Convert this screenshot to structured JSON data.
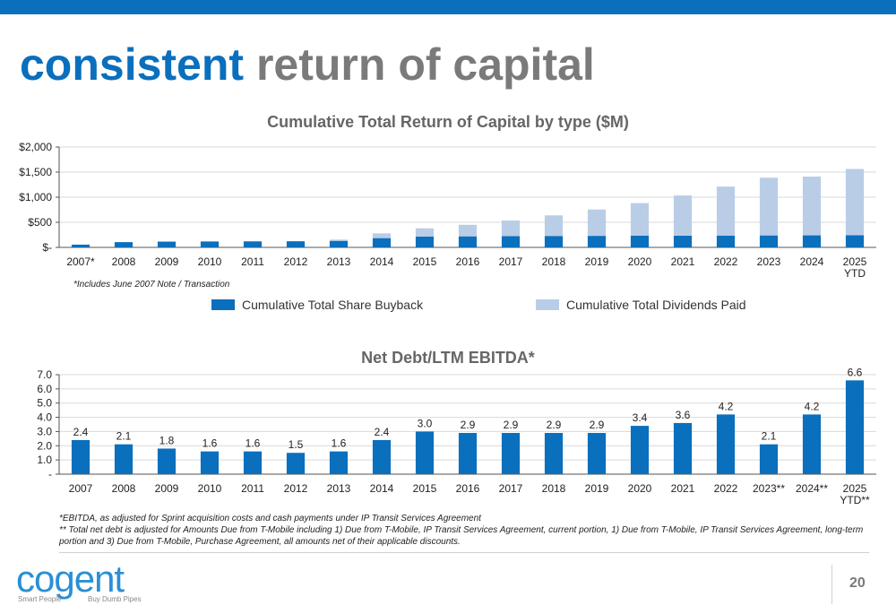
{
  "page": {
    "title_part1": "consistent",
    "title_part2": "return of capital",
    "page_number": "20",
    "colors": {
      "accent": "#0a6fbd",
      "dividends": "#b9cde6",
      "title_gray": "#7a7a7a"
    }
  },
  "logo": {
    "word": "cogent",
    "tagline_left": "Smart People",
    "tagline_right": "Buy Dumb Pipes"
  },
  "footnotes": {
    "chart1_note": "*Includes June 2007 Note / Transaction",
    "ebitda_note": "*EBITDA, as adjusted for Sprint acquisition costs and cash payments under IP Transit Services Agreement",
    "net_debt_note": "**   Total net debt is adjusted for Amounts Due from T-Mobile including 1) Due from T-Mobile, IP Transit Services Agreement, current portion, 1) Due from T-Mobile, IP Transit Services Agreement, long-term portion and 3) Due from T-Mobile, Purchase Agreement, all amounts net of their applicable discounts."
  },
  "chart_data": [
    {
      "type": "bar",
      "stacked": true,
      "title": "Cumulative Total Return of Capital by type ($M)",
      "categories": [
        "2007*",
        "2008",
        "2009",
        "2010",
        "2011",
        "2012",
        "2013",
        "2014",
        "2015",
        "2016",
        "2017",
        "2018",
        "2019",
        "2020",
        "2021",
        "2022",
        "2023",
        "2024",
        "2025\nYTD"
      ],
      "series": [
        {
          "name": "Cumulative Total Share Buyback",
          "color": "#0a6fbd",
          "values": [
            55,
            105,
            115,
            118,
            120,
            122,
            130,
            185,
            215,
            220,
            225,
            228,
            230,
            232,
            234,
            236,
            238,
            240,
            242
          ]
        },
        {
          "name": "Cumulative Total Dividends Paid",
          "color": "#b9cde6",
          "values": [
            0,
            0,
            0,
            0,
            0,
            0,
            25,
            95,
            165,
            230,
            310,
            410,
            525,
            650,
            800,
            975,
            1150,
            1170,
            1320
          ]
        }
      ],
      "yticks": [
        "$-",
        "$500",
        "$1,000",
        "$1,500",
        "$2,000"
      ],
      "ylim": [
        0,
        2000
      ],
      "grid": true,
      "legend": "bottom"
    },
    {
      "type": "bar",
      "title": "Net Debt/LTM EBITDA*",
      "categories": [
        "2007",
        "2008",
        "2009",
        "2010",
        "2011",
        "2012",
        "2013",
        "2014",
        "2015",
        "2016",
        "2017",
        "2018",
        "2019",
        "2020",
        "2021",
        "2022",
        "2023**",
        "2024**",
        "2025\nYTD**"
      ],
      "series": [
        {
          "color": "#0a6fbd",
          "values": [
            2.4,
            2.1,
            1.8,
            1.6,
            1.6,
            1.5,
            1.6,
            2.4,
            3.0,
            2.9,
            2.9,
            2.9,
            2.9,
            3.4,
            3.6,
            4.2,
            2.1,
            4.2,
            6.6
          ],
          "labels": [
            "2.4",
            "2.1",
            "1.8",
            "1.6",
            "1.6",
            "1.5",
            "1.6",
            "2.4",
            "3.0",
            "2.9",
            "2.9",
            "2.9",
            "2.9",
            "3.4",
            "3.6",
            "4.2",
            "2.1",
            "4.2",
            "6.6"
          ]
        }
      ],
      "yticks": [
        "-",
        "1.0",
        "2.0",
        "3.0",
        "4.0",
        "5.0",
        "6.0",
        "7.0"
      ],
      "ylim": [
        0,
        7
      ],
      "grid": true
    }
  ]
}
